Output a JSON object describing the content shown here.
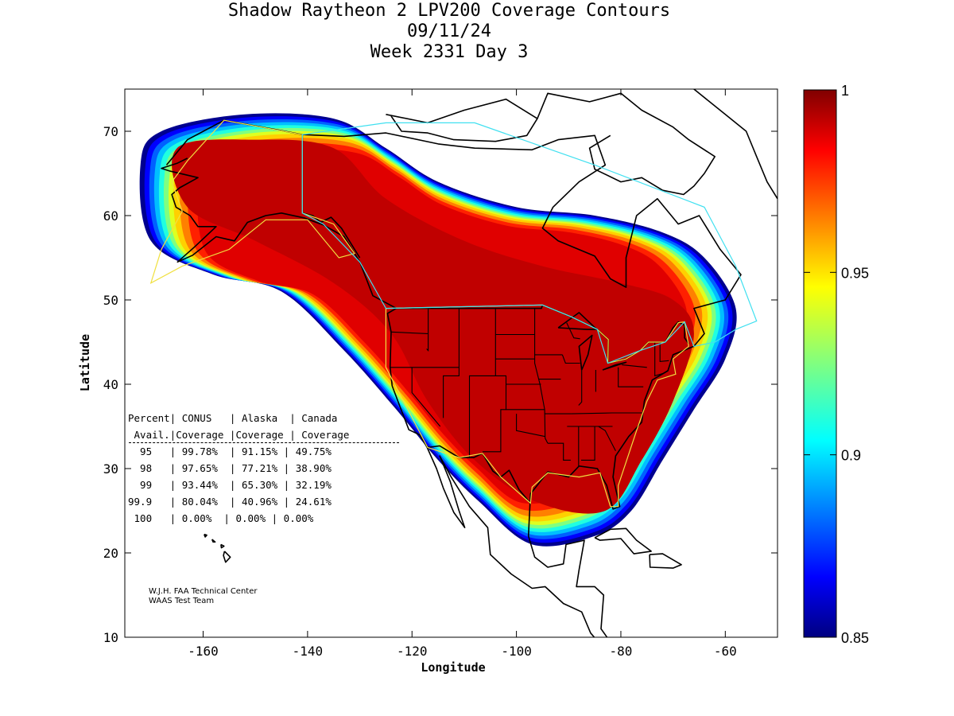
{
  "chart_data": {
    "type": "heatmap",
    "title": [
      "Shadow Raytheon 2 LPV200 Coverage Contours",
      "09/11/24",
      "Week 2331 Day 3"
    ],
    "xlabel": "Longitude",
    "ylabel": "Latitude",
    "xlim": [
      -175,
      -50
    ],
    "ylim": [
      10,
      75
    ],
    "x_ticks": [
      -160,
      -140,
      -120,
      -100,
      -80,
      -60
    ],
    "y_ticks": [
      10,
      20,
      30,
      40,
      50,
      60,
      70
    ],
    "colorbar": {
      "range": [
        0.85,
        1
      ],
      "ticks": [
        0.85,
        0.9,
        0.95,
        1
      ],
      "tick_labels": [
        "0.85",
        "0.9",
        "0.95",
        "1"
      ],
      "colormap": "jet"
    },
    "coverage_region_approx": [
      [
        -168,
        70
      ],
      [
        -152,
        72
      ],
      [
        -135,
        71.5
      ],
      [
        -125,
        68
      ],
      [
        -115,
        64
      ],
      [
        -100,
        61
      ],
      [
        -85,
        60
      ],
      [
        -72,
        58
      ],
      [
        -64,
        55
      ],
      [
        -58,
        49
      ],
      [
        -60,
        43
      ],
      [
        -66,
        37
      ],
      [
        -72,
        31
      ],
      [
        -78,
        25
      ],
      [
        -85,
        22
      ],
      [
        -97,
        21
      ],
      [
        -107,
        26
      ],
      [
        -115,
        31
      ],
      [
        -123,
        37
      ],
      [
        -133,
        44
      ],
      [
        -145,
        51
      ],
      [
        -158,
        53
      ],
      [
        -170,
        57
      ],
      [
        -172,
        66
      ]
    ],
    "full_coverage_region_approx": [
      [
        -165,
        68
      ],
      [
        -150,
        69
      ],
      [
        -135,
        68
      ],
      [
        -125,
        62
      ],
      [
        -110,
        57
      ],
      [
        -95,
        54
      ],
      [
        -80,
        52
      ],
      [
        -70,
        50
      ],
      [
        -66,
        46
      ],
      [
        -70,
        38
      ],
      [
        -76,
        31
      ],
      [
        -83,
        25
      ],
      [
        -96,
        26
      ],
      [
        -108,
        31
      ],
      [
        -117,
        38
      ],
      [
        -124,
        46
      ],
      [
        -135,
        52
      ],
      [
        -150,
        57
      ],
      [
        -163,
        61
      ]
    ],
    "table": {
      "header1": "Percent| CONUS   | Alaska  | Canada",
      "header2": " Avail.|Coverage |Coverage | Coverage",
      "rows": [
        "  95   | 99.78%  | 91.15% | 49.75%",
        "  98   | 97.65%  | 77.21% | 38.90%",
        "  99   | 93.44%  | 65.30% | 32.19%",
        "99.9   | 80.04%  | 40.96% | 24.61%",
        " 100   | 0.00%  | 0.00% | 0.00%"
      ]
    },
    "footer_notes": [
      "W.J.H. FAA Technical Center",
      "WAAS Test Team"
    ]
  }
}
